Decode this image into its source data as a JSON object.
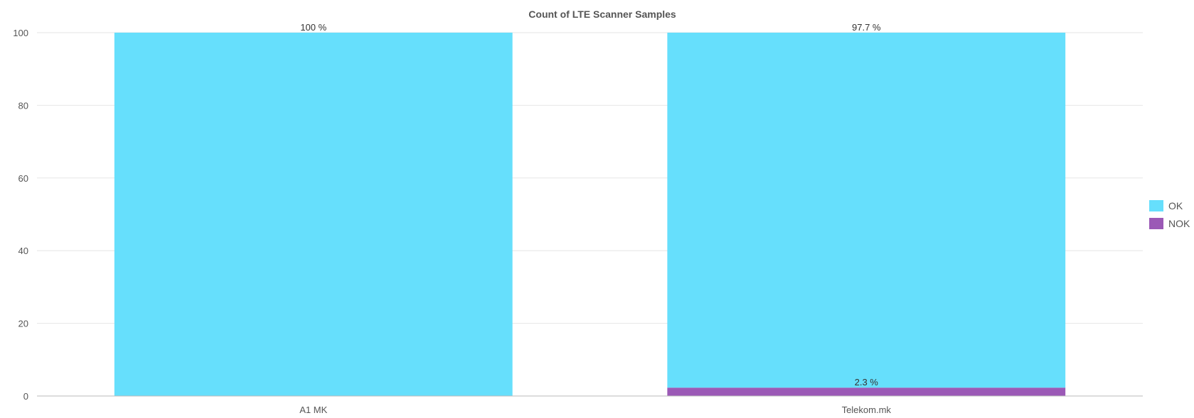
{
  "chart_data": {
    "type": "bar",
    "stacked": true,
    "title": "Count of LTE Scanner Samples",
    "xlabel": "",
    "ylabel": "",
    "ylim": [
      0,
      100
    ],
    "yticks": [
      "0",
      "20",
      "40",
      "60",
      "80",
      "100"
    ],
    "categories": [
      "A1 MK",
      "Telekom.mk"
    ],
    "series": [
      {
        "name": "OK",
        "color": "#66DFFC",
        "values": [
          100,
          97.7
        ],
        "labels": [
          "100 %",
          "97.7 %"
        ]
      },
      {
        "name": "NOK",
        "color": "#9B59B6",
        "values": [
          0,
          2.3
        ],
        "labels": [
          "",
          "2.3 %"
        ]
      }
    ],
    "grid": true,
    "legend_position": "right"
  }
}
